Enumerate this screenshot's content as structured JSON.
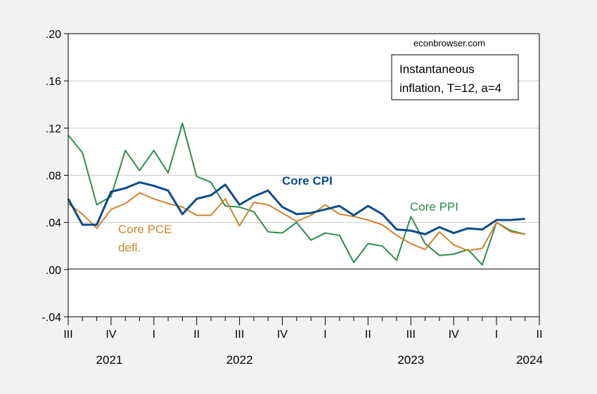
{
  "chart_data": {
    "type": "line",
    "watermark": "econbrowser.com",
    "legend_box": [
      "Instantaneous",
      "inflation, T=12, a=4"
    ],
    "ylim": [
      -0.04,
      0.2
    ],
    "yticks": [
      ".20",
      ".16",
      ".12",
      ".08",
      ".04",
      ".00",
      "-.04"
    ],
    "ytick_values": [
      0.2,
      0.16,
      0.12,
      0.08,
      0.04,
      0.0,
      -0.04
    ],
    "quarter_labels": [
      "III",
      "IV",
      "I",
      "II",
      "III",
      "IV",
      "I",
      "II",
      "III",
      "IV",
      "I",
      "II"
    ],
    "year_labels": [
      "2021",
      "2022",
      "2023",
      "2024"
    ],
    "zero_line": true,
    "grid": "horizontal",
    "series": [
      {
        "name": "Core CPI",
        "color": "#0c4a8c",
        "values": [
          0.06,
          0.038,
          0.038,
          0.066,
          0.069,
          0.074,
          0.071,
          0.067,
          0.047,
          0.06,
          0.063,
          0.072,
          0.055,
          0.062,
          0.067,
          0.053,
          0.047,
          0.048,
          0.051,
          0.054,
          0.046,
          0.054,
          0.047,
          0.034,
          0.033,
          0.03,
          0.036,
          0.031,
          0.035,
          0.034,
          0.042,
          0.042,
          0.043
        ]
      },
      {
        "name": "Core PCE defl.",
        "color": "#d0832e",
        "values": [
          0.056,
          0.047,
          0.035,
          0.051,
          0.056,
          0.065,
          0.06,
          0.056,
          0.053,
          0.046,
          0.046,
          0.06,
          0.037,
          0.057,
          0.055,
          0.048,
          0.041,
          0.046,
          0.055,
          0.047,
          0.045,
          0.042,
          0.038,
          0.029,
          0.022,
          0.017,
          0.032,
          0.021,
          0.016,
          0.018,
          0.04,
          0.032,
          0.03
        ]
      },
      {
        "name": "Core PPI",
        "color": "#2e8b4f",
        "values": [
          0.114,
          0.099,
          0.055,
          0.062,
          0.101,
          0.084,
          0.101,
          0.082,
          0.124,
          0.079,
          0.074,
          0.054,
          0.053,
          0.049,
          0.032,
          0.031,
          0.04,
          0.025,
          0.031,
          0.029,
          0.006,
          0.022,
          0.02,
          0.008,
          0.045,
          0.022,
          0.012,
          0.013,
          0.017,
          0.004,
          0.04,
          0.033,
          0.03
        ]
      }
    ],
    "series_labels": [
      {
        "text": "Core CPI",
        "series": 0
      },
      {
        "text": "Core PPI",
        "series": 2
      },
      {
        "text": "Core PCE",
        "series": 1
      },
      {
        "text": "defl.",
        "series": 1
      }
    ]
  }
}
